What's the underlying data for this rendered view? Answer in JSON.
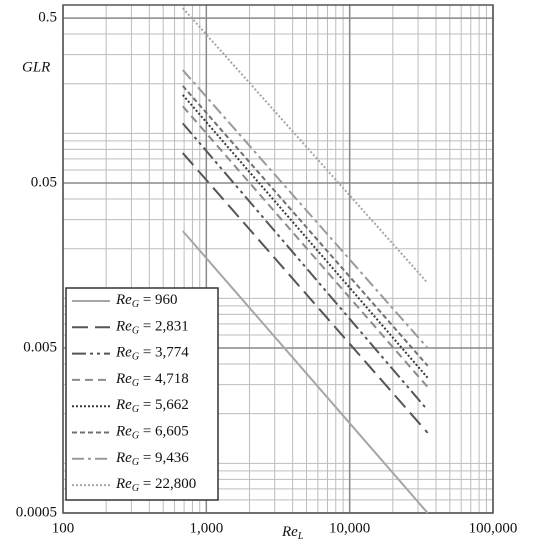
{
  "chart_data": {
    "type": "line",
    "x_label": "ReL",
    "y_label": "GLR",
    "x": [
      685,
      35000
    ],
    "series": [
      {
        "name": "ReG = 960",
        "color": "#a6a6a6",
        "dash": "none",
        "values": [
          0.0256,
          0.0005
        ]
      },
      {
        "name": "ReG = 2,831",
        "color": "#555555",
        "dash": "16,7",
        "values": [
          0.076,
          0.00153
        ]
      },
      {
        "name": "ReG = 3,774",
        "color": "#555555",
        "dash": "14,4,3,4,3,4",
        "values": [
          0.115,
          0.0021
        ]
      },
      {
        "name": "ReG = 4,718",
        "color": "#8c8c8c",
        "dash": "8,5",
        "values": [
          0.146,
          0.0029
        ]
      },
      {
        "name": "ReG = 5,662",
        "color": "#3a3a3a",
        "dash": "2,2",
        "values": [
          0.171,
          0.0033
        ]
      },
      {
        "name": "ReG = 6,605",
        "color": "#707070",
        "dash": "5,3",
        "values": [
          0.194,
          0.0039
        ]
      },
      {
        "name": "ReG = 9,436",
        "color": "#9a9a9a",
        "dash": "12,4,3,4",
        "values": [
          0.242,
          0.005
        ]
      },
      {
        "name": "ReG = 22,800",
        "color": "#a6a6a6",
        "dash": "2,2",
        "values": [
          0.575,
          0.0124
        ]
      }
    ],
    "xlim": [
      100,
      100000
    ],
    "ylim": [
      0.0005,
      0.6
    ],
    "xticks": [
      {
        "value": 100,
        "label": "100"
      },
      {
        "value": 1000,
        "label": "1,000"
      },
      {
        "value": 10000,
        "label": "10,000"
      },
      {
        "value": 100000,
        "label": "100,000"
      }
    ],
    "yticks": [
      0.0005,
      0.005,
      0.05,
      0.5
    ],
    "log_x": true,
    "log_y": true,
    "grid": true,
    "legend": "lower left"
  }
}
